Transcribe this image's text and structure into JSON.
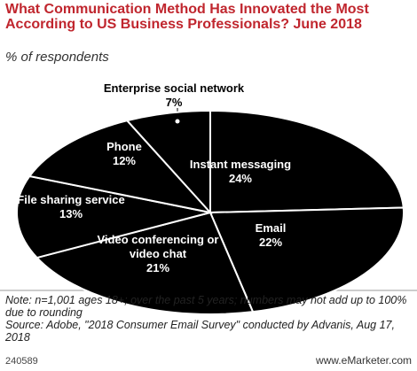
{
  "chart_data": {
    "type": "pie",
    "title": "What Communication Method Has Innovated the Most According to US Business Professionals? June 2018",
    "subtitle": "% of respondents",
    "categories": [
      "Instant messaging",
      "Email",
      "Video conferencing or video chat",
      "File sharing service",
      "Phone",
      "Enterprise social network"
    ],
    "values": [
      24,
      22,
      21,
      13,
      12,
      7
    ],
    "value_labels": [
      "24%",
      "22%",
      "21%",
      "13%",
      "12%",
      "7%"
    ],
    "color": "#000000",
    "note": "Note: n=1,001 ages 18+; over the past 5 years; numbers may not add up to 100% due to rounding",
    "source": "Source: Adobe, \"2018 Consumer Email Survey\" conducted by Advanis, Aug 17, 2018",
    "chart_id": "240589",
    "brand": "www.eMarketer.com"
  }
}
